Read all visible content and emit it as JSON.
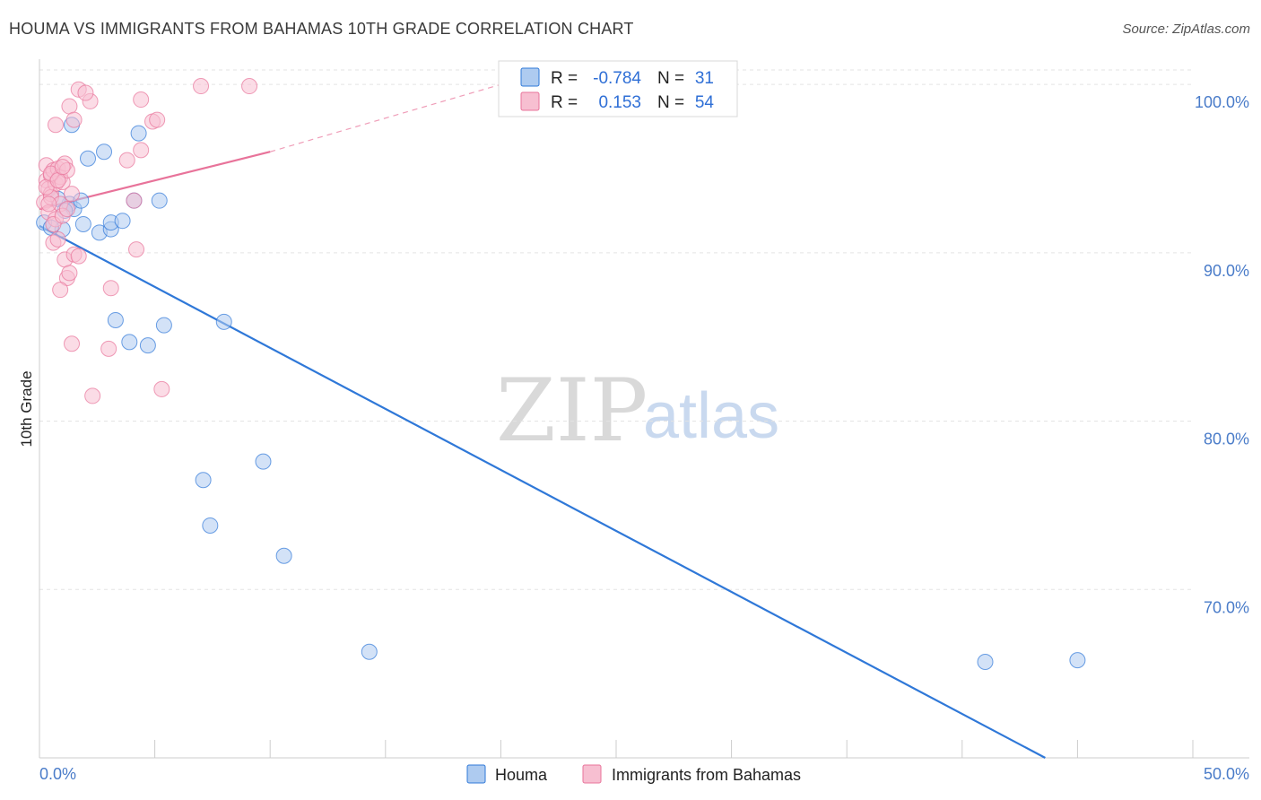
{
  "header": {
    "title": "HOUMA VS IMMIGRANTS FROM BAHAMAS 10TH GRADE CORRELATION CHART",
    "source": "Source: ZipAtlas.com"
  },
  "watermark": {
    "part1": "ZIP",
    "part2": "atlas"
  },
  "legend": {
    "rows": [
      {
        "r_label": "R =",
        "r_value": "-0.784",
        "n_label": "N =",
        "n_value": "31",
        "color": "#7fa8e0"
      },
      {
        "r_label": "R =",
        "r_value": "0.153",
        "n_label": "N =",
        "n_value": "54",
        "color": "#f08fb0"
      }
    ]
  },
  "bottom_legend": {
    "items": [
      {
        "label": "Houma"
      },
      {
        "label": "Immigrants from Bahamas"
      }
    ]
  },
  "colors": {
    "blue": "#2f78d8",
    "blue_fill": "#aecbf0",
    "pink": "#e8739a",
    "pink_fill": "#f7bfd1",
    "axis_text": "#4a7cc9"
  },
  "chart_data": {
    "type": "scatter",
    "title": "HOUMA VS IMMIGRANTS FROM BAHAMAS 10TH GRADE CORRELATION CHART",
    "xlabel": "",
    "ylabel": "10th Grade",
    "xlim": [
      0,
      50
    ],
    "ylim": [
      60,
      101.5
    ],
    "x_tick_labels": [
      "0.0%",
      "50.0%"
    ],
    "y_ticks": [
      70,
      80,
      90,
      100
    ],
    "y_tick_labels": [
      "70.0%",
      "80.0%",
      "90.0%",
      "100.0%"
    ],
    "grid": true,
    "legend_position": "top-center",
    "series": [
      {
        "name": "Houma",
        "points": [
          [
            0.2,
            91.8
          ],
          [
            1.0,
            91.4
          ],
          [
            1.3,
            92.9
          ],
          [
            1.5,
            92.6
          ],
          [
            1.4,
            97.6
          ],
          [
            1.8,
            93.1
          ],
          [
            1.9,
            91.7
          ],
          [
            2.1,
            95.6
          ],
          [
            2.6,
            91.2
          ],
          [
            2.8,
            96.0
          ],
          [
            3.1,
            91.4
          ],
          [
            3.1,
            91.8
          ],
          [
            3.6,
            91.9
          ],
          [
            4.1,
            93.1
          ],
          [
            4.3,
            97.1
          ],
          [
            5.2,
            93.1
          ],
          [
            3.3,
            86.0
          ],
          [
            3.9,
            84.7
          ],
          [
            4.7,
            84.5
          ],
          [
            5.4,
            85.7
          ],
          [
            8.0,
            85.9
          ],
          [
            7.1,
            76.5
          ],
          [
            7.4,
            73.8
          ],
          [
            9.7,
            77.6
          ],
          [
            10.6,
            72.0
          ],
          [
            14.3,
            66.3
          ],
          [
            41.0,
            65.7
          ],
          [
            45.0,
            65.8
          ],
          [
            0.5,
            91.5
          ],
          [
            0.8,
            93.2
          ],
          [
            1.1,
            92.5
          ]
        ],
        "trend": {
          "x0": 0.0,
          "y0": 91.6,
          "x1": 43.6,
          "y1": 60.0
        }
      },
      {
        "name": "Immigrants from Bahamas",
        "points": [
          [
            0.2,
            93.0
          ],
          [
            0.3,
            95.2
          ],
          [
            0.3,
            94.3
          ],
          [
            0.4,
            93.8
          ],
          [
            0.5,
            94.6
          ],
          [
            0.5,
            93.5
          ],
          [
            0.6,
            94.9
          ],
          [
            0.7,
            94.1
          ],
          [
            0.8,
            95.0
          ],
          [
            0.9,
            94.5
          ],
          [
            1.0,
            94.2
          ],
          [
            1.1,
            95.3
          ],
          [
            1.2,
            94.9
          ],
          [
            0.4,
            92.4
          ],
          [
            0.5,
            93.3
          ],
          [
            0.7,
            92.0
          ],
          [
            0.6,
            91.7
          ],
          [
            0.9,
            92.9
          ],
          [
            1.0,
            92.2
          ],
          [
            1.4,
            93.5
          ],
          [
            0.6,
            90.6
          ],
          [
            0.8,
            90.8
          ],
          [
            1.1,
            89.6
          ],
          [
            1.2,
            88.5
          ],
          [
            1.3,
            88.8
          ],
          [
            1.5,
            89.9
          ],
          [
            1.7,
            89.8
          ],
          [
            0.9,
            87.8
          ],
          [
            1.4,
            84.6
          ],
          [
            2.3,
            81.5
          ],
          [
            3.0,
            84.3
          ],
          [
            3.1,
            87.9
          ],
          [
            4.1,
            93.1
          ],
          [
            4.2,
            90.2
          ],
          [
            3.8,
            95.5
          ],
          [
            4.4,
            96.1
          ],
          [
            4.9,
            97.8
          ],
          [
            5.1,
            97.9
          ],
          [
            5.3,
            81.9
          ],
          [
            0.7,
            97.6
          ],
          [
            1.3,
            98.7
          ],
          [
            1.5,
            97.9
          ],
          [
            1.7,
            99.7
          ],
          [
            2.2,
            99.0
          ],
          [
            4.4,
            99.1
          ],
          [
            7.0,
            99.9
          ],
          [
            9.1,
            99.9
          ],
          [
            0.3,
            93.9
          ],
          [
            0.5,
            94.7
          ],
          [
            0.8,
            94.3
          ],
          [
            1.0,
            95.1
          ],
          [
            1.2,
            92.6
          ],
          [
            2.0,
            99.5
          ],
          [
            0.4,
            92.9
          ]
        ],
        "trend": {
          "x0": 0.0,
          "y0": 92.6,
          "x1": 10.0,
          "y1": 96.0
        },
        "trend_ext": {
          "x0": 10.0,
          "y0": 96.0,
          "x1": 20.0,
          "y1": 100.0
        }
      }
    ]
  }
}
